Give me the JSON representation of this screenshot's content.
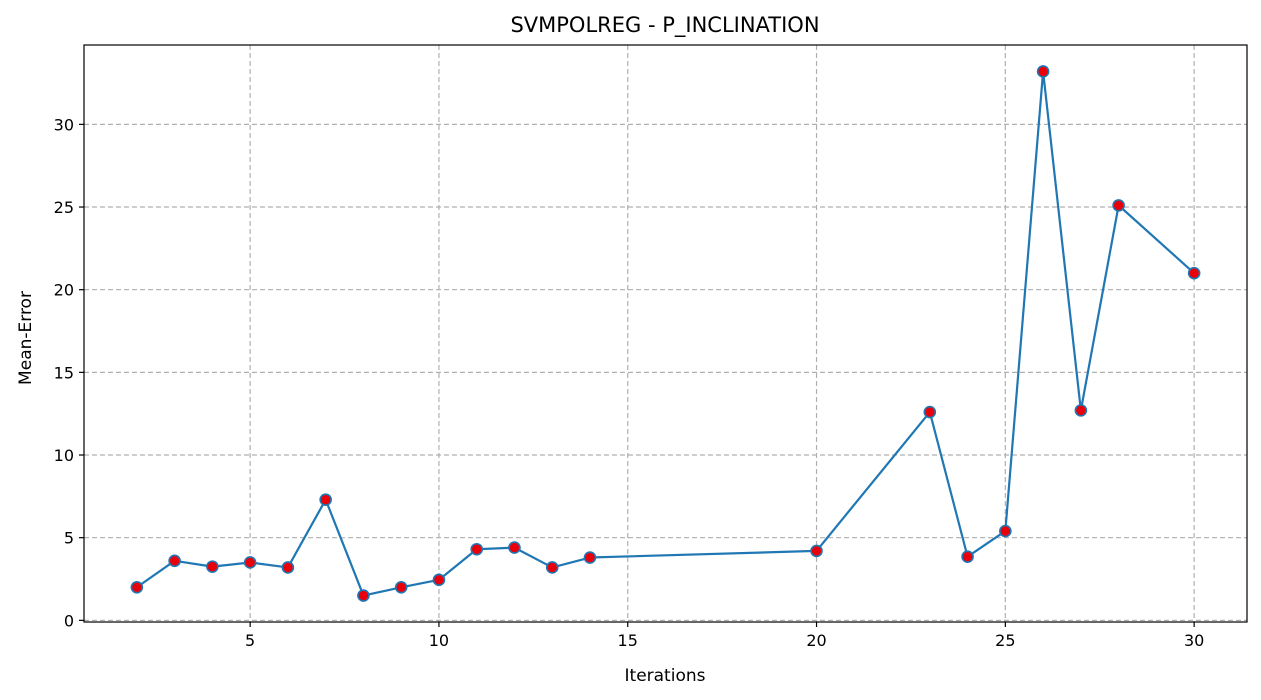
{
  "chart_data": {
    "type": "line",
    "title": "SVMPOLREG - P_INCLINATION",
    "xlabel": "Iterations",
    "ylabel": "Mean-Error",
    "xlim": [
      0.6,
      31.4
    ],
    "ylim": [
      -0.1,
      34.8
    ],
    "xticks": [
      5,
      10,
      15,
      20,
      25,
      30
    ],
    "yticks": [
      0,
      5,
      10,
      15,
      20,
      25,
      30
    ],
    "grid": true,
    "series": [
      {
        "x": [
          2,
          3,
          4,
          5,
          6,
          7,
          8,
          9,
          10,
          11,
          12,
          13,
          14,
          20,
          23,
          24,
          25,
          26,
          27,
          28,
          30
        ],
        "y": [
          2.0,
          3.6,
          3.25,
          3.5,
          3.2,
          7.3,
          1.5,
          2.0,
          2.45,
          4.3,
          4.4,
          3.2,
          3.8,
          4.2,
          12.6,
          3.85,
          5.4,
          33.2,
          12.7,
          25.1,
          21.0
        ],
        "line_color": "#1f77b4",
        "marker_color": "#e8000b"
      }
    ]
  }
}
